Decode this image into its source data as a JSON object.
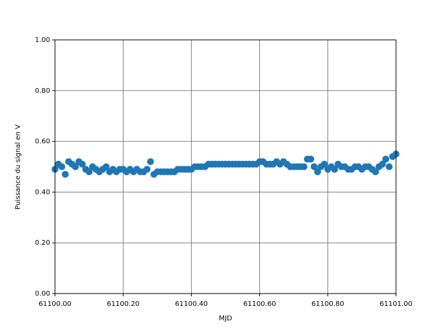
{
  "chart_data": {
    "type": "scatter",
    "xlabel": "MJD",
    "ylabel": "Puissance du signal en V",
    "x": [
      61100.0,
      61100.01,
      61100.02,
      61100.03,
      61100.04,
      61100.05,
      61100.06,
      61100.07,
      61100.08,
      61100.09,
      61100.1,
      61100.11,
      61100.12,
      61100.13,
      61100.14,
      61100.15,
      61100.16,
      61100.17,
      61100.18,
      61100.19,
      61100.2,
      61100.21,
      61100.22,
      61100.23,
      61100.24,
      61100.25,
      61100.26,
      61100.27,
      61100.28,
      61100.29,
      61100.3,
      61100.31,
      61100.32,
      61100.33,
      61100.34,
      61100.35,
      61100.36,
      61100.37,
      61100.38,
      61100.39,
      61100.4,
      61100.41,
      61100.42,
      61100.43,
      61100.44,
      61100.45,
      61100.46,
      61100.47,
      61100.48,
      61100.49,
      61100.5,
      61100.51,
      61100.52,
      61100.53,
      61100.54,
      61100.55,
      61100.56,
      61100.57,
      61100.58,
      61100.59,
      61100.6,
      61100.61,
      61100.62,
      61100.63,
      61100.64,
      61100.65,
      61100.66,
      61100.67,
      61100.68,
      61100.69,
      61100.7,
      61100.71,
      61100.72,
      61100.73,
      61100.74,
      61100.75,
      61100.76,
      61100.77,
      61100.78,
      61100.79,
      61100.8,
      61100.81,
      61100.82,
      61100.83,
      61100.84,
      61100.85,
      61100.86,
      61100.87,
      61100.88,
      61100.89,
      61100.9,
      61100.91,
      61100.92,
      61100.93,
      61100.94,
      61100.95,
      61100.96,
      61100.97,
      61100.98,
      61100.99,
      61101.0
    ],
    "series": [
      {
        "color": "#1f77b4",
        "values": [
          0.49,
          0.51,
          0.5,
          0.47,
          0.52,
          0.51,
          0.5,
          0.52,
          0.51,
          0.49,
          0.48,
          0.5,
          0.49,
          0.48,
          0.49,
          0.5,
          0.48,
          0.49,
          0.48,
          0.49,
          0.49,
          0.48,
          0.49,
          0.48,
          0.49,
          0.48,
          0.48,
          0.49,
          0.52,
          0.47,
          0.48,
          0.48,
          0.48,
          0.48,
          0.48,
          0.48,
          0.49,
          0.49,
          0.49,
          0.49,
          0.49,
          0.5,
          0.5,
          0.5,
          0.5,
          0.51,
          0.51,
          0.51,
          0.51,
          0.51,
          0.51,
          0.51,
          0.51,
          0.51,
          0.51,
          0.51,
          0.51,
          0.51,
          0.51,
          0.51,
          0.52,
          0.52,
          0.51,
          0.51,
          0.51,
          0.52,
          0.51,
          0.52,
          0.51,
          0.5,
          0.5,
          0.5,
          0.5,
          0.5,
          0.53,
          0.53,
          0.5,
          0.48,
          0.5,
          0.51,
          0.49,
          0.5,
          0.49,
          0.51,
          0.5,
          0.5,
          0.49,
          0.49,
          0.5,
          0.5,
          0.49,
          0.5,
          0.5,
          0.49,
          0.48,
          0.5,
          0.51,
          0.53,
          0.5,
          0.54,
          0.55
        ]
      }
    ],
    "xlim": [
      61100.0,
      61101.0
    ],
    "xticks": [
      {
        "value": 61100.0,
        "label": "61100.00"
      },
      {
        "value": 61100.2,
        "label": "61100.20"
      },
      {
        "value": 61100.4,
        "label": "61100.40"
      },
      {
        "value": 61100.6,
        "label": "61100.60"
      },
      {
        "value": 61100.8,
        "label": "61100.80"
      },
      {
        "value": 61101.0,
        "label": "61101.00"
      }
    ],
    "ylim": [
      0,
      1
    ],
    "yticks": [
      {
        "value": 0,
        "label": "0.00"
      },
      {
        "value": 0.2,
        "label": "0.20"
      },
      {
        "value": 0.4,
        "label": "0.40"
      },
      {
        "value": 0.6,
        "label": "0.60"
      },
      {
        "value": 0.8,
        "label": "0.80"
      },
      {
        "value": 1,
        "label": "1.00"
      }
    ],
    "grid": true
  }
}
